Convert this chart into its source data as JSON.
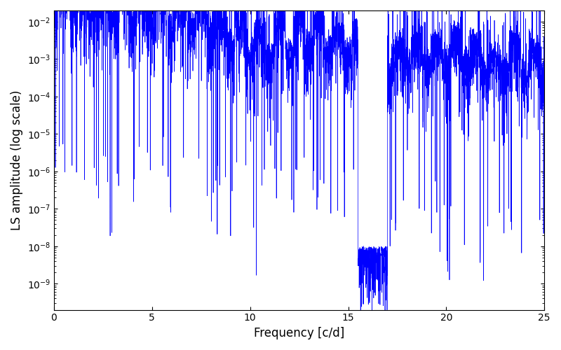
{
  "xlabel": "Frequency [c/d]",
  "ylabel": "LS amplitude (log scale)",
  "line_color": "#0000ff",
  "line_width": 0.5,
  "xlim": [
    0,
    25
  ],
  "ylim_log": [
    -9.7,
    -1.7
  ],
  "figsize": [
    8.0,
    5.0
  ],
  "dpi": 100,
  "freq_max": 25.0,
  "n_points": 5000,
  "seed": 42
}
